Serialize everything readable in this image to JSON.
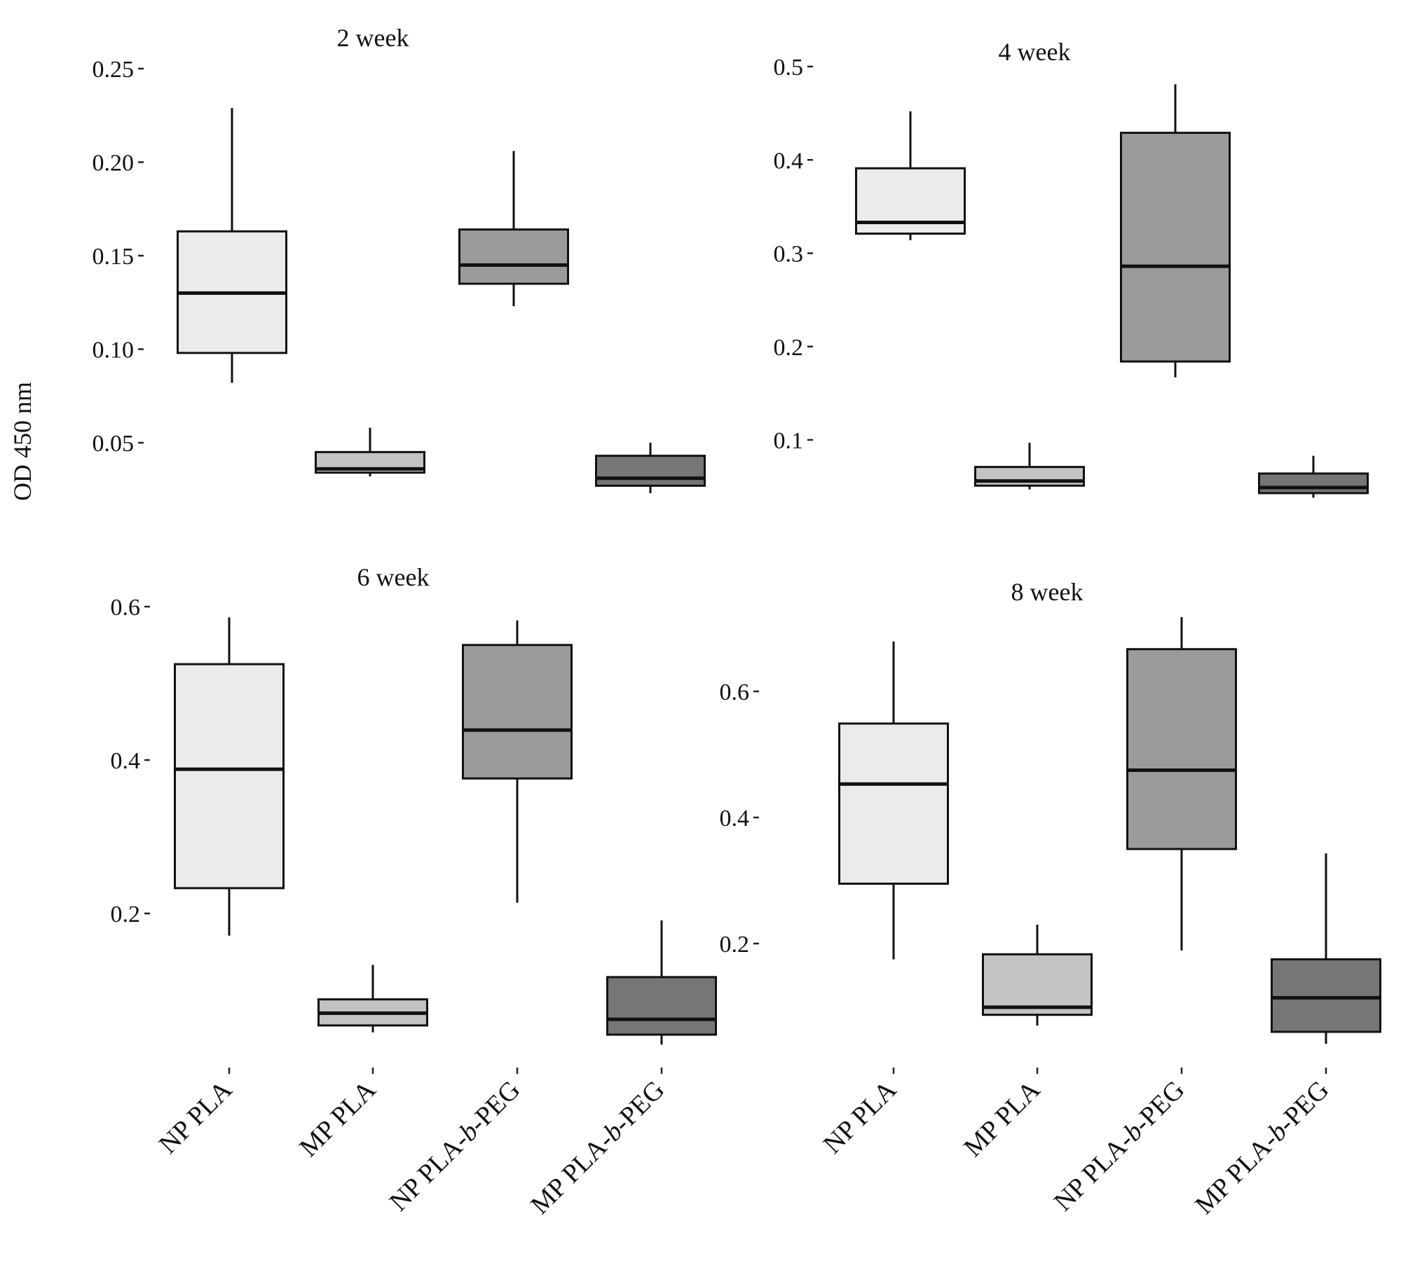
{
  "chart_data": {
    "type": "boxplot",
    "ylabel": "OD 450 nm",
    "xlabel": "",
    "categories": [
      "NP PLA",
      "MP PLA",
      "NP PLA-b-PEG",
      "MP PLA-b-PEG"
    ],
    "category_labels": [
      {
        "pre": "NP PLA",
        "italic": "",
        "post": ""
      },
      {
        "pre": "MP PLA",
        "italic": "",
        "post": ""
      },
      {
        "pre": "NP PLA-",
        "italic": "b",
        "post": "-PEG"
      },
      {
        "pre": "MP PLA-",
        "italic": "b",
        "post": "-PEG"
      }
    ],
    "fill_colors": [
      "#ebebeb",
      "#c3c3c3",
      "#9b9b9b",
      "#767676"
    ],
    "grid": false,
    "legend": "none",
    "panels": [
      {
        "title": "2 week",
        "yticks": [
          0.05,
          0.1,
          0.15,
          0.2,
          0.25
        ],
        "ytick_labels": [
          "0.05",
          "0.10",
          "0.15",
          "0.20",
          "0.25"
        ],
        "show_xlabels": false,
        "boxes": [
          {
            "category": "NP PLA",
            "whisker_low": 0.082,
            "q1": 0.098,
            "median": 0.13,
            "q3": 0.163,
            "whisker_high": 0.229
          },
          {
            "category": "MP PLA",
            "whisker_low": 0.032,
            "q1": 0.034,
            "median": 0.036,
            "q3": 0.045,
            "whisker_high": 0.058
          },
          {
            "category": "NP PLA-b-PEG",
            "whisker_low": 0.123,
            "q1": 0.135,
            "median": 0.145,
            "q3": 0.164,
            "whisker_high": 0.206
          },
          {
            "category": "MP PLA-b-PEG",
            "whisker_low": 0.023,
            "q1": 0.027,
            "median": 0.031,
            "q3": 0.043,
            "whisker_high": 0.05
          }
        ]
      },
      {
        "title": "4 week",
        "yticks": [
          0.1,
          0.2,
          0.3,
          0.4,
          0.5
        ],
        "ytick_labels": [
          "0.1",
          "0.2",
          "0.3",
          "0.4",
          "0.5"
        ],
        "show_xlabels": false,
        "boxes": [
          {
            "category": "NP PLA",
            "whisker_low": 0.314,
            "q1": 0.321,
            "median": 0.333,
            "q3": 0.391,
            "whisker_high": 0.452
          },
          {
            "category": "MP PLA",
            "whisker_low": 0.047,
            "q1": 0.051,
            "median": 0.056,
            "q3": 0.071,
            "whisker_high": 0.097
          },
          {
            "category": "NP PLA-b-PEG",
            "whisker_low": 0.167,
            "q1": 0.184,
            "median": 0.286,
            "q3": 0.429,
            "whisker_high": 0.481
          },
          {
            "category": "MP PLA-b-PEG",
            "whisker_low": 0.038,
            "q1": 0.043,
            "median": 0.049,
            "q3": 0.064,
            "whisker_high": 0.083
          }
        ]
      },
      {
        "title": "6 week",
        "yticks": [
          0.2,
          0.4,
          0.6
        ],
        "ytick_labels": [
          "0.2",
          "0.4",
          "0.6"
        ],
        "show_xlabels": true,
        "boxes": [
          {
            "category": "NP PLA",
            "whisker_low": 0.171,
            "q1": 0.233,
            "median": 0.388,
            "q3": 0.525,
            "whisker_high": 0.586
          },
          {
            "category": "MP PLA",
            "whisker_low": 0.045,
            "q1": 0.054,
            "median": 0.07,
            "q3": 0.088,
            "whisker_high": 0.133
          },
          {
            "category": "NP PLA-b-PEG",
            "whisker_low": 0.214,
            "q1": 0.376,
            "median": 0.439,
            "q3": 0.55,
            "whisker_high": 0.582
          },
          {
            "category": "MP PLA-b-PEG",
            "whisker_low": 0.029,
            "q1": 0.042,
            "median": 0.062,
            "q3": 0.117,
            "whisker_high": 0.191
          }
        ]
      },
      {
        "title": "8 week",
        "yticks": [
          0.2,
          0.4,
          0.6
        ],
        "ytick_labels": [
          "0.2",
          "0.4",
          "0.6"
        ],
        "show_xlabels": true,
        "boxes": [
          {
            "category": "NP PLA",
            "whisker_low": 0.175,
            "q1": 0.295,
            "median": 0.453,
            "q3": 0.549,
            "whisker_high": 0.679
          },
          {
            "category": "MP PLA",
            "whisker_low": 0.07,
            "q1": 0.087,
            "median": 0.099,
            "q3": 0.183,
            "whisker_high": 0.23
          },
          {
            "category": "NP PLA-b-PEG",
            "whisker_low": 0.189,
            "q1": 0.35,
            "median": 0.475,
            "q3": 0.667,
            "whisker_high": 0.718
          },
          {
            "category": "MP PLA-b-PEG",
            "whisker_low": 0.041,
            "q1": 0.06,
            "median": 0.114,
            "q3": 0.175,
            "whisker_high": 0.343
          }
        ]
      }
    ]
  }
}
